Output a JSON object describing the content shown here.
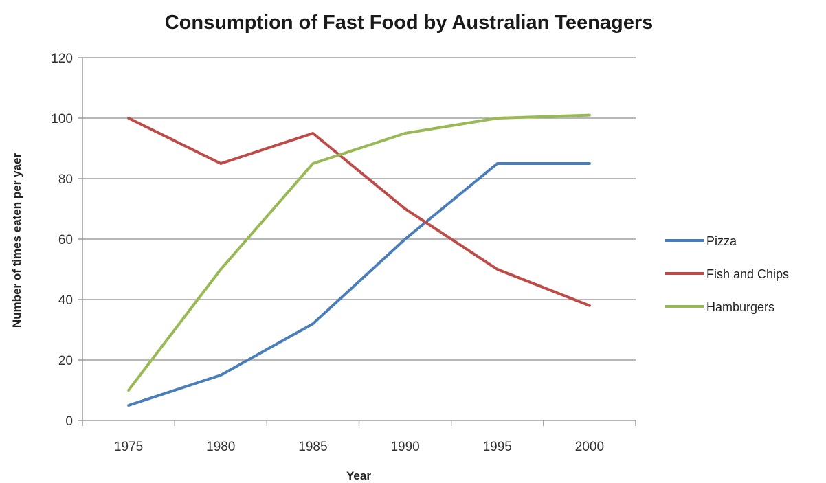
{
  "chart_data": {
    "type": "line",
    "title": "Consumption of Fast Food by Australian Teenagers",
    "xlabel": "Year",
    "ylabel": "Number of times eaten per yaer",
    "categories": [
      "1975",
      "1980",
      "1985",
      "1990",
      "1995",
      "2000"
    ],
    "ylim": [
      0,
      120
    ],
    "yticks": [
      0,
      20,
      40,
      60,
      80,
      100,
      120
    ],
    "grid": true,
    "legend": "right",
    "series": [
      {
        "name": "Pizza",
        "color": "#4a7ebb",
        "values": [
          5,
          15,
          32,
          60,
          85,
          85
        ]
      },
      {
        "name": "Fish and Chips",
        "color": "#be4b48",
        "values": [
          100,
          85,
          95,
          70,
          50,
          38
        ]
      },
      {
        "name": "Hamburgers",
        "color": "#98b954",
        "values": [
          10,
          50,
          85,
          95,
          100,
          101
        ]
      }
    ]
  }
}
